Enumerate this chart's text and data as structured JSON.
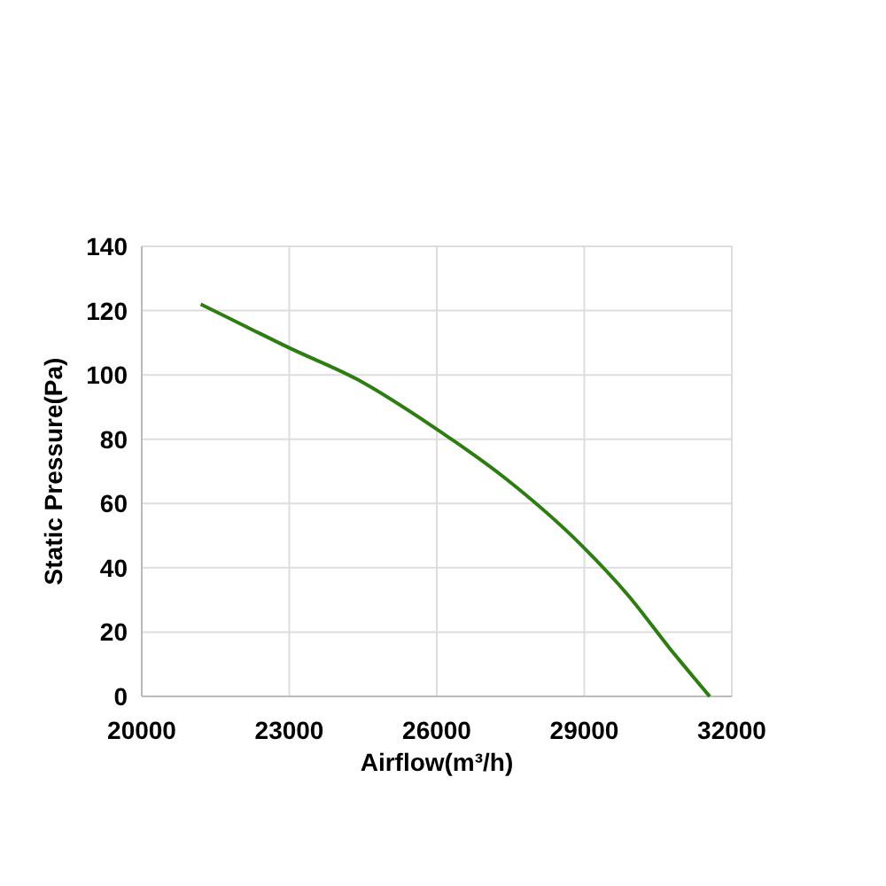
{
  "chart_data": {
    "type": "line",
    "xlabel": "Airflow(m³/h)",
    "ylabel": "Static Pressure(Pa)",
    "xlim": [
      20000,
      32000
    ],
    "xticks": [
      20000,
      23000,
      26000,
      29000,
      32000
    ],
    "ylim": [
      0,
      140
    ],
    "yticks": [
      0,
      20,
      40,
      60,
      80,
      100,
      120,
      140
    ],
    "grid": true,
    "marker": "none",
    "line_style": "solid",
    "series": [
      {
        "color": "#2e7d12",
        "x": [
          21200,
          22150,
          23000,
          24370,
          25950,
          27380,
          28950,
          29900,
          30750,
          31550
        ],
        "values": [
          122,
          114.8,
          108.4,
          98.7,
          83.6,
          68,
          46.9,
          31.3,
          14.7,
          0
        ]
      }
    ]
  }
}
